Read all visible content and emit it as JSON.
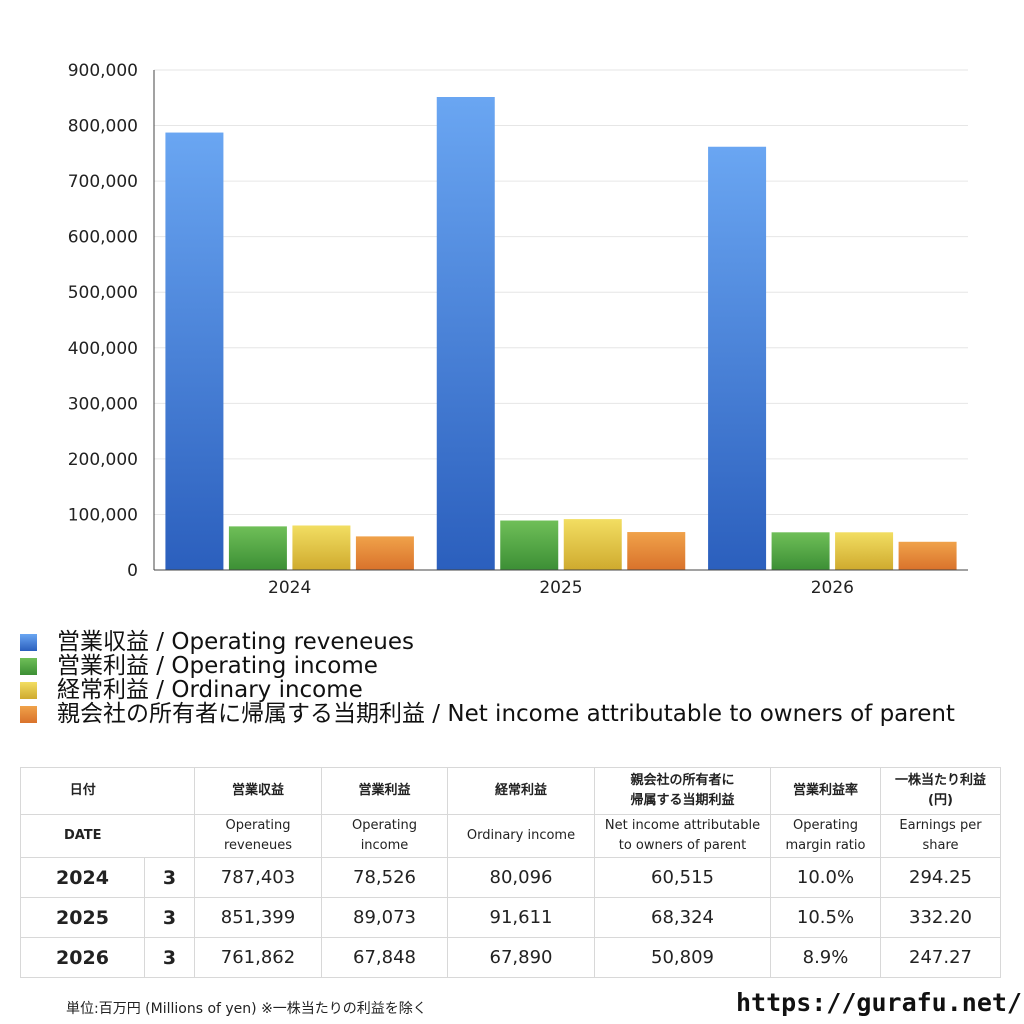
{
  "chart_data": {
    "type": "bar",
    "categories": [
      "2024",
      "2025",
      "2026"
    ],
    "series": [
      {
        "name": "営業収益 / Operating reveneues",
        "values": [
          787403,
          851399,
          761862
        ],
        "color_top": "#6aa6f2",
        "color_bottom": "#2b5fbd"
      },
      {
        "name": "営業利益 / Operating income",
        "values": [
          78526,
          89073,
          67848
        ],
        "color_top": "#6fbf58",
        "color_bottom": "#3c8f35"
      },
      {
        "name": "経常利益 / Ordinary income",
        "values": [
          80096,
          91611,
          67890
        ],
        "color_top": "#f2de62",
        "color_bottom": "#cfaa2e"
      },
      {
        "name": "親会社の所有者に帰属する当期利益 / Net income attributable to owners of parent",
        "values": [
          60515,
          68324,
          50809
        ],
        "color_top": "#f0a24a",
        "color_bottom": "#d9722b"
      }
    ],
    "ylim": [
      0,
      900000
    ],
    "yticks": [
      "0",
      "100,000",
      "200,000",
      "300,000",
      "400,000",
      "500,000",
      "600,000",
      "700,000",
      "800,000",
      "900,000"
    ],
    "grid": true,
    "legend_placement": "bottom"
  },
  "table": {
    "header_row1": [
      "日付",
      "",
      "営業収益",
      "営業利益",
      "経常利益",
      "親会社の所有者に\n帰属する当期利益",
      "営業利益率",
      "一株当たり利益\n(円)"
    ],
    "header_row2": [
      "DATE",
      "",
      "Operating\nreveneues",
      "Operating\nincome",
      "Ordinary income",
      "Net income attributable\nto owners of parent",
      "Operating\nmargin ratio",
      "Earnings per\nshare"
    ],
    "rows": [
      [
        "2024",
        "3",
        "787,403",
        "78,526",
        "80,096",
        "60,515",
        "10.0%",
        "294.25"
      ],
      [
        "2025",
        "3",
        "851,399",
        "89,073",
        "91,611",
        "68,324",
        "10.5%",
        "332.20"
      ],
      [
        "2026",
        "3",
        "761,862",
        "67,848",
        "67,890",
        "50,809",
        "8.9%",
        "247.27"
      ]
    ]
  },
  "footnote": "単位:百万円 (Millions of yen) ※一株当たりの利益を除く",
  "site": "https://gurafu.net/"
}
